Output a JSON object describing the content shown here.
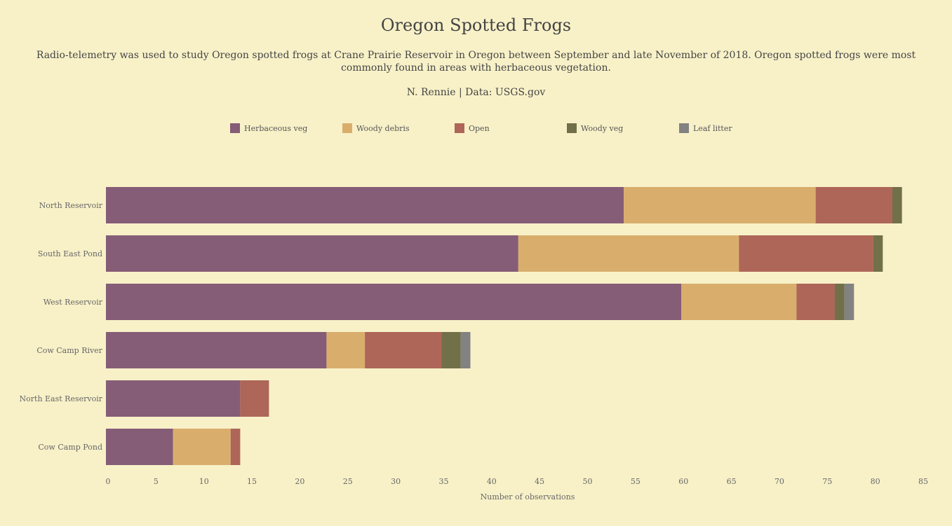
{
  "chart_data": {
    "type": "bar",
    "orientation": "horizontal",
    "stacked": true,
    "title": "Oregon Spotted Frogs",
    "subtitle": "Radio-telemetry was used to study Oregon spotted frogs at Crane Prairie Reservoir in Oregon between September and late November of 2018. Oregon spotted frogs were most commonly found in areas with herbaceous vegetation.",
    "caption": "N. Rennie | Data: USGS.gov",
    "xlabel": "Number of observations",
    "ylabel": "",
    "xlim": [
      0,
      85
    ],
    "xticks": [
      0,
      5,
      10,
      15,
      20,
      25,
      30,
      35,
      40,
      45,
      50,
      55,
      60,
      65,
      70,
      75,
      80,
      85
    ],
    "grid": false,
    "legend_position": "top",
    "categories": [
      "North Reservoir",
      "South East Pond",
      "West Reservoir",
      "Cow Camp River",
      "North East Reservoir",
      "Cow Camp Pond"
    ],
    "series": [
      {
        "name": "Herbaceous veg",
        "color": "#855d77",
        "values": [
          54,
          43,
          60,
          23,
          14,
          7
        ]
      },
      {
        "name": "Woody debris",
        "color": "#d9ae6d",
        "values": [
          20,
          23,
          12,
          4,
          0,
          6
        ]
      },
      {
        "name": "Open",
        "color": "#ae6659",
        "values": [
          8,
          14,
          4,
          8,
          3,
          1
        ]
      },
      {
        "name": "Woody veg",
        "color": "#717049",
        "values": [
          1,
          1,
          1,
          2,
          0,
          0
        ]
      },
      {
        "name": "Leaf litter",
        "color": "#828282",
        "values": [
          0,
          0,
          1,
          1,
          0,
          0
        ]
      }
    ]
  }
}
